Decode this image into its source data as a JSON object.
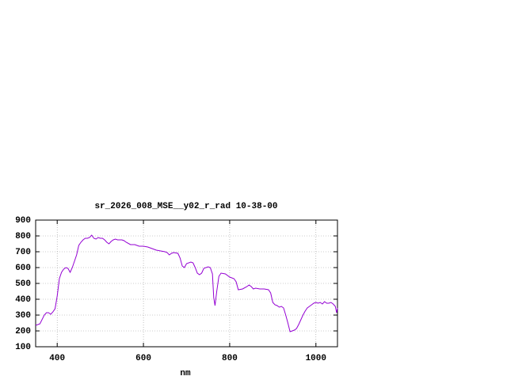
{
  "chart_data": {
    "type": "line",
    "title": "sr_2026_008_MSE__y02_r_rad 10-38-00",
    "x_label": "nm",
    "x": [
      350,
      360,
      370,
      375,
      380,
      385,
      390,
      395,
      400,
      405,
      410,
      415,
      420,
      425,
      430,
      435,
      440,
      445,
      450,
      455,
      460,
      465,
      470,
      475,
      480,
      485,
      490,
      495,
      500,
      505,
      510,
      515,
      520,
      525,
      530,
      535,
      540,
      550,
      555,
      560,
      570,
      580,
      590,
      600,
      610,
      620,
      630,
      640,
      650,
      655,
      660,
      665,
      670,
      680,
      685,
      690,
      695,
      700,
      710,
      715,
      720,
      725,
      730,
      735,
      740,
      750,
      755,
      760,
      763,
      766,
      770,
      775,
      780,
      790,
      800,
      810,
      815,
      820,
      830,
      840,
      845,
      850,
      855,
      860,
      870,
      880,
      890,
      895,
      900,
      905,
      910,
      915,
      920,
      925,
      930,
      935,
      940,
      945,
      950,
      955,
      960,
      965,
      970,
      975,
      980,
      985,
      990,
      995,
      1000,
      1005,
      1010,
      1015,
      1020,
      1025,
      1030,
      1035,
      1040,
      1045,
      1048,
      1050
    ],
    "values": [
      235,
      245,
      300,
      315,
      315,
      305,
      320,
      340,
      420,
      530,
      570,
      590,
      600,
      595,
      570,
      600,
      640,
      680,
      740,
      760,
      775,
      785,
      785,
      790,
      805,
      785,
      780,
      790,
      785,
      785,
      775,
      760,
      750,
      765,
      775,
      780,
      775,
      775,
      770,
      760,
      745,
      745,
      735,
      735,
      730,
      720,
      710,
      705,
      700,
      695,
      680,
      690,
      695,
      690,
      660,
      610,
      600,
      625,
      635,
      630,
      600,
      565,
      555,
      565,
      595,
      605,
      600,
      560,
      410,
      360,
      450,
      545,
      565,
      560,
      540,
      530,
      510,
      460,
      465,
      480,
      490,
      480,
      465,
      470,
      465,
      465,
      460,
      440,
      380,
      365,
      360,
      350,
      355,
      345,
      300,
      250,
      195,
      200,
      205,
      215,
      240,
      270,
      300,
      325,
      345,
      355,
      365,
      375,
      380,
      375,
      380,
      370,
      385,
      375,
      375,
      380,
      370,
      355,
      315,
      345
    ],
    "color": "#9400d3",
    "xlim": [
      350,
      1050
    ],
    "ylim": [
      100,
      900
    ],
    "xticks": [
      400,
      600,
      800,
      1000
    ],
    "yticks": [
      100,
      200,
      300,
      400,
      500,
      600,
      700,
      800,
      900
    ],
    "grid": true
  }
}
